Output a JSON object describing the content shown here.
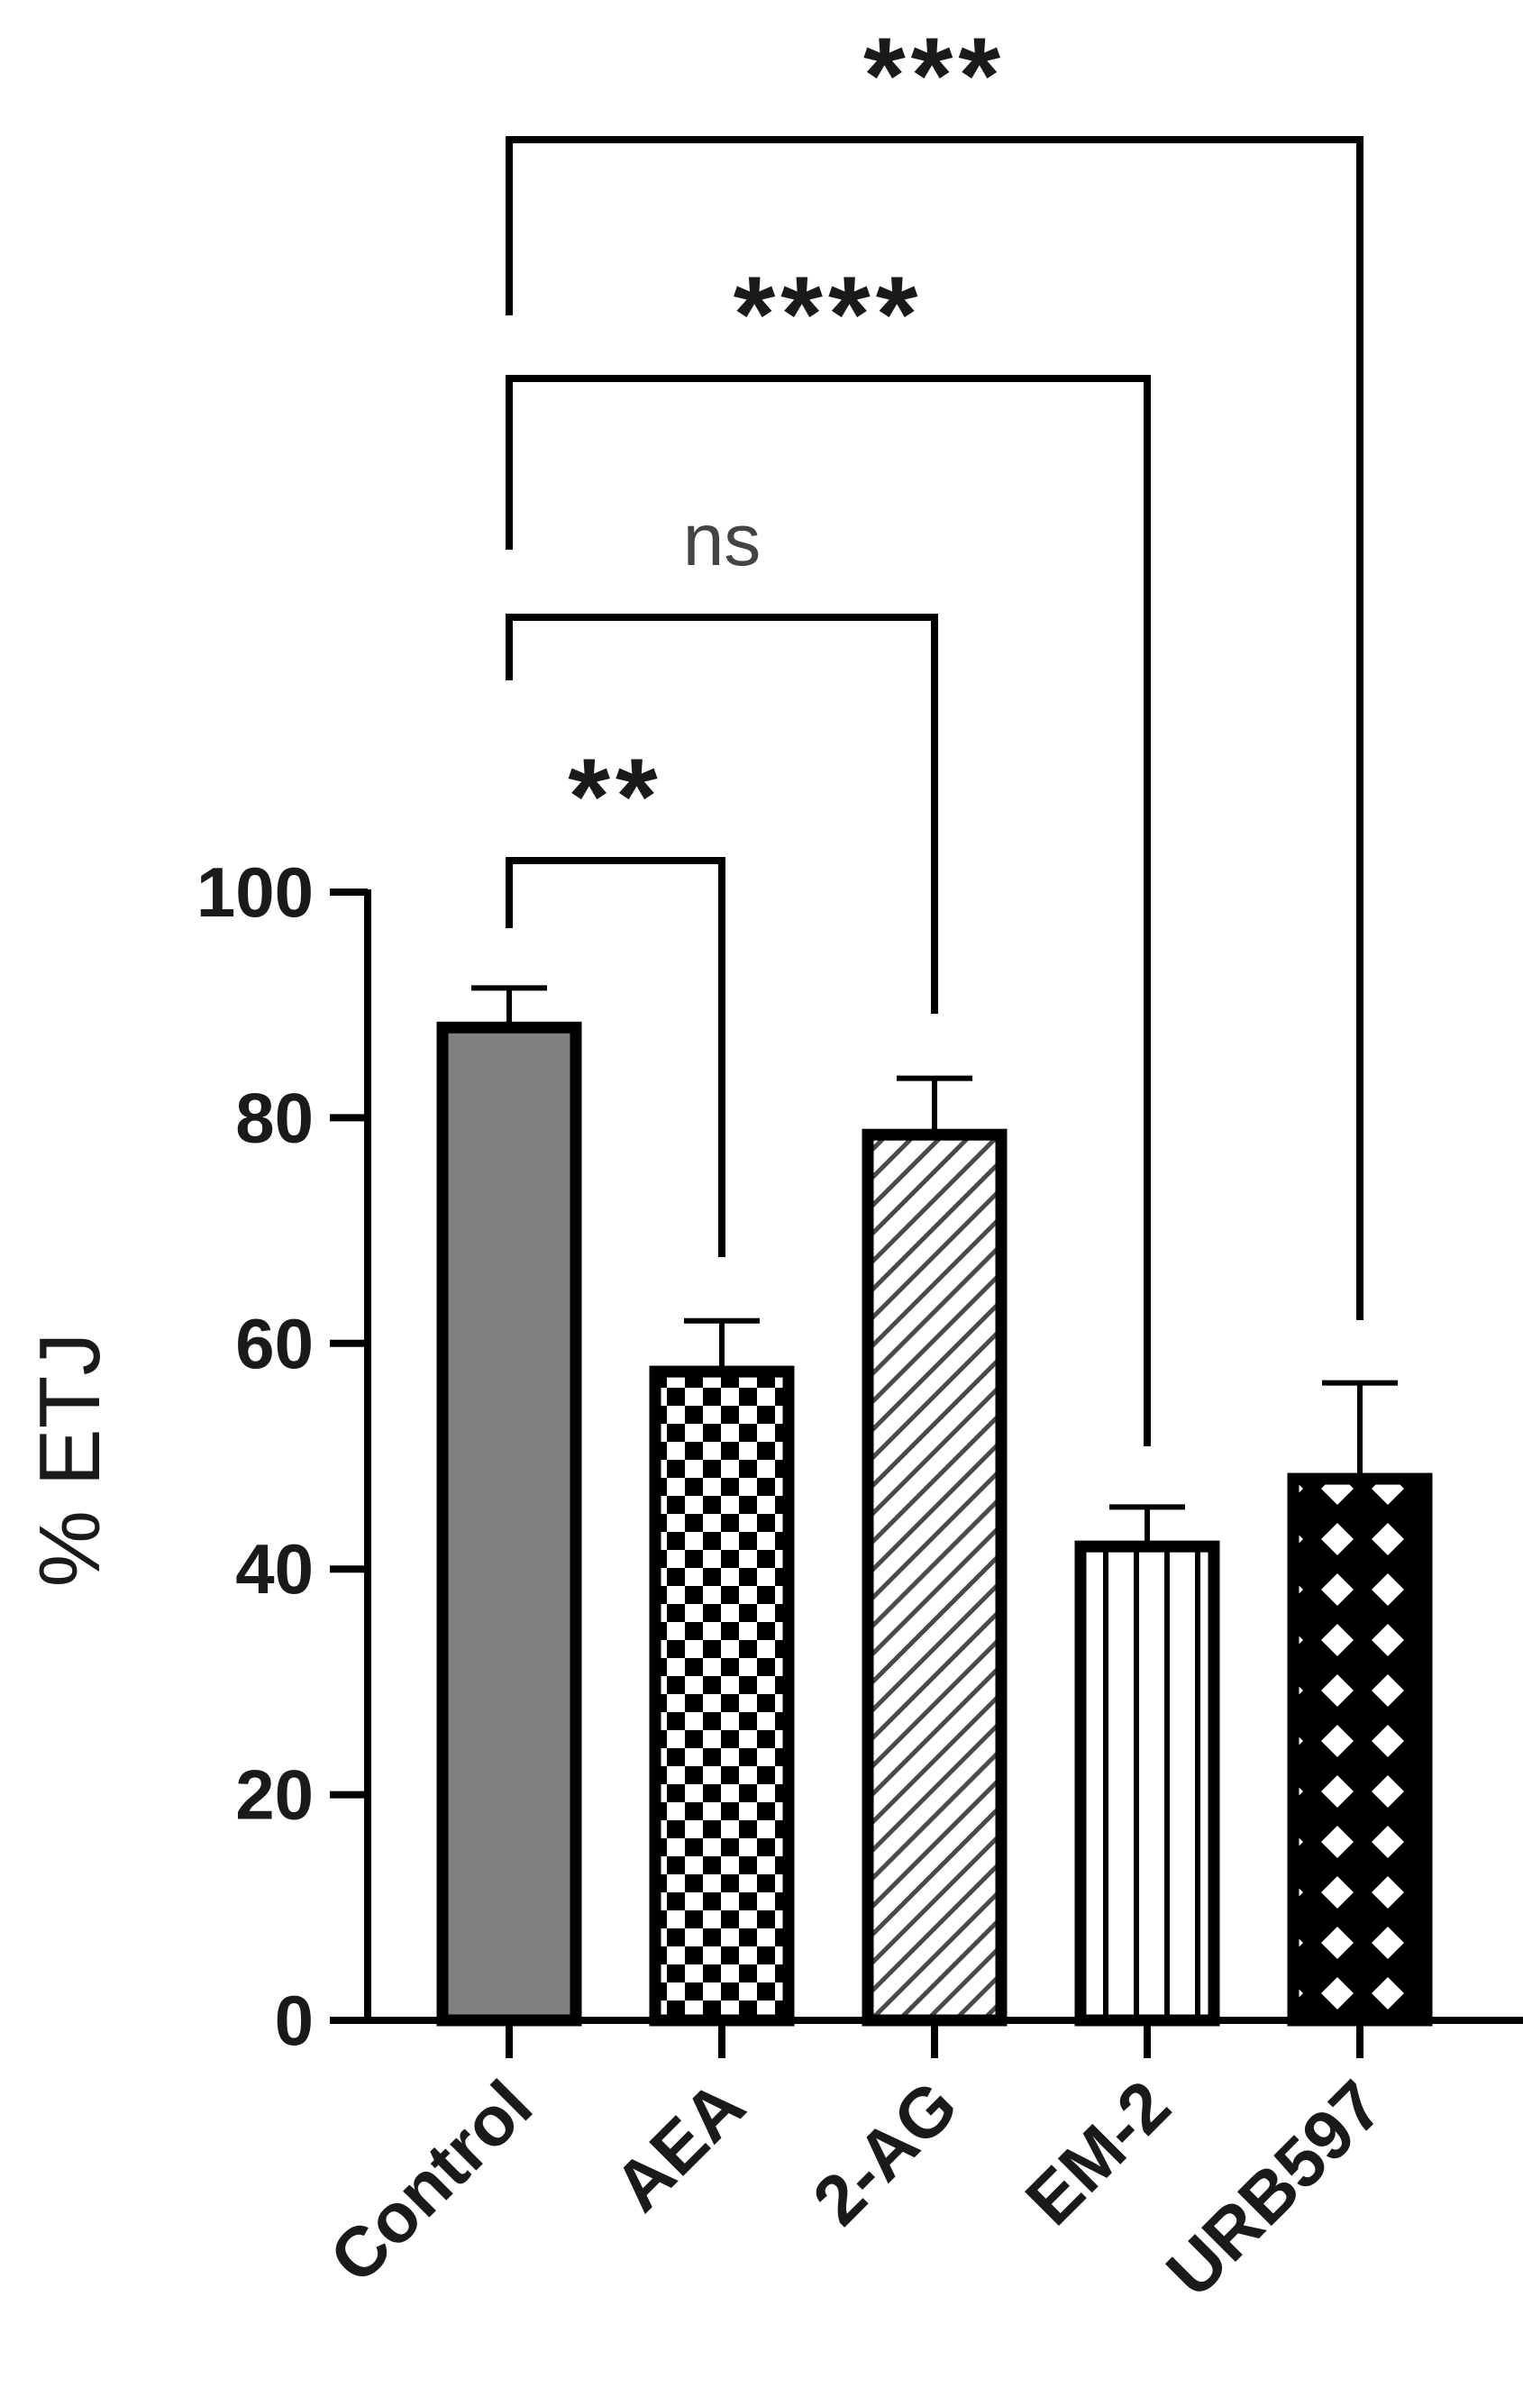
{
  "chart_data": {
    "type": "bar",
    "title": "",
    "xlabel": "",
    "ylabel": "% ETJ",
    "ylim": [
      0,
      100
    ],
    "yticks": [
      0,
      20,
      40,
      60,
      80,
      100
    ],
    "grid": false,
    "legend": "none",
    "categories": [
      "Control",
      "AEA",
      "2-AG",
      "EM-2",
      "URB597"
    ],
    "values": [
      88,
      57.5,
      78.5,
      42,
      48
    ],
    "errors": [
      3.5,
      4.5,
      5,
      3.5,
      8.5
    ],
    "patterns": [
      "solid-gray",
      "checkerboard",
      "diagonal-hatch",
      "vertical-stripes",
      "diamond-lattice"
    ],
    "colors": {
      "bar_fill": "#808080",
      "stroke": "#000000"
    },
    "comparisons": [
      {
        "from": "Control",
        "to": "AEA",
        "label": "**"
      },
      {
        "from": "Control",
        "to": "2-AG",
        "label": "ns"
      },
      {
        "from": "Control",
        "to": "EM-2",
        "label": "****"
      },
      {
        "from": "Control",
        "to": "URB597",
        "label": "***"
      }
    ]
  }
}
